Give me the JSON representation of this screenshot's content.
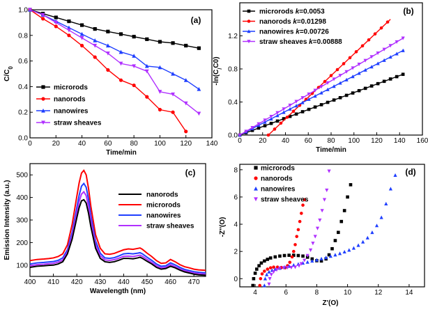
{
  "chart_data": [
    {
      "panel": "(a)",
      "type": "line",
      "xlabel": "Time/min",
      "ylabel": "C/C0",
      "xlim": [
        0,
        140
      ],
      "ylim": [
        0,
        1
      ],
      "xticks": [
        "0",
        "20",
        "40",
        "60",
        "80",
        "100",
        "120",
        "140"
      ],
      "yticks": [
        "0.0",
        "0.2",
        "0.4",
        "0.6",
        "0.8",
        "1.0"
      ],
      "legend": "bottom-left",
      "series": [
        {
          "name": "microrods",
          "color": "#000000",
          "marker": "square",
          "x": [
            0,
            10,
            20,
            30,
            40,
            50,
            60,
            70,
            80,
            90,
            100,
            110,
            120,
            130
          ],
          "y": [
            1.0,
            0.97,
            0.94,
            0.91,
            0.88,
            0.85,
            0.83,
            0.81,
            0.79,
            0.77,
            0.75,
            0.74,
            0.72,
            0.7
          ]
        },
        {
          "name": "nanorods",
          "color": "#ff0000",
          "marker": "circle",
          "x": [
            0,
            10,
            20,
            30,
            40,
            50,
            60,
            70,
            80,
            90,
            100,
            110,
            120
          ],
          "y": [
            1.0,
            0.93,
            0.87,
            0.8,
            0.72,
            0.63,
            0.53,
            0.45,
            0.41,
            0.32,
            0.22,
            0.2,
            0.05
          ]
        },
        {
          "name": "nanowires",
          "color": "#1f3fff",
          "marker": "triangle-up",
          "x": [
            0,
            10,
            20,
            30,
            40,
            50,
            60,
            70,
            80,
            90,
            100,
            110,
            120,
            130
          ],
          "y": [
            1.0,
            0.96,
            0.91,
            0.86,
            0.81,
            0.76,
            0.72,
            0.67,
            0.64,
            0.56,
            0.55,
            0.5,
            0.45,
            0.38
          ]
        },
        {
          "name": "straw sheaves",
          "color": "#b030ff",
          "marker": "triangle-down",
          "x": [
            0,
            10,
            20,
            30,
            40,
            50,
            60,
            70,
            80,
            90,
            100,
            110,
            120,
            130
          ],
          "y": [
            1.0,
            0.96,
            0.9,
            0.84,
            0.78,
            0.72,
            0.66,
            0.58,
            0.56,
            0.52,
            0.36,
            0.34,
            0.27,
            0.19
          ]
        }
      ]
    },
    {
      "panel": "(b)",
      "type": "line",
      "xlabel": "Time/min",
      "ylabel": "-ln(C/C0)",
      "xlim": [
        0,
        160
      ],
      "ylim": [
        0,
        1.6
      ],
      "xticks": [
        "0",
        "20",
        "40",
        "60",
        "80",
        "100",
        "120",
        "140",
        "160"
      ],
      "yticks": [
        "0.0",
        "0.4",
        "0.8",
        "1.2"
      ],
      "legend": "top-left",
      "series": [
        {
          "name": "microrods",
          "k_label": "k=0.0053",
          "color": "#000000",
          "marker": "square",
          "x_start": 0,
          "x_end": 144,
          "y_start": 0.0,
          "y_end": 0.74
        },
        {
          "name": "nanorods",
          "k_label": "k=0.01298",
          "color": "#ff0000",
          "marker": "circle",
          "x_start": 25,
          "x_end": 132,
          "y_start": 0.0,
          "y_end": 1.4
        },
        {
          "name": "nanowires",
          "k_label": "k=0.00726",
          "color": "#1f3fff",
          "marker": "triangle-up",
          "x_start": 0,
          "x_end": 144,
          "y_start": 0.0,
          "y_end": 1.03
        },
        {
          "name": "straw sheaves",
          "k_label": "k=0.00888",
          "color": "#b030ff",
          "marker": "triangle-down",
          "x_start": 0,
          "x_end": 144,
          "y_start": 0.0,
          "y_end": 1.18
        }
      ]
    },
    {
      "panel": "(c)",
      "type": "line",
      "xlabel": "Wavelength (nm)",
      "ylabel": "Emission Intensity (a.u.)",
      "xlim": [
        400,
        475
      ],
      "ylim": [
        50,
        550
      ],
      "xticks": [
        "400",
        "410",
        "420",
        "430",
        "440",
        "450",
        "460",
        "470"
      ],
      "yticks": [
        "100",
        "200",
        "300",
        "400",
        "500"
      ],
      "legend": "right",
      "x": [
        400,
        403,
        406,
        408,
        410,
        412,
        414,
        416,
        418,
        420,
        421,
        422,
        423,
        424,
        425,
        426,
        428,
        430,
        432,
        434,
        436,
        438,
        440,
        442,
        444,
        446,
        447,
        448,
        450,
        452,
        454,
        456,
        458,
        460,
        462,
        464,
        466,
        468,
        470,
        472,
        475
      ],
      "series": [
        {
          "name": "nanorods",
          "color": "#000000",
          "values": [
            90,
            95,
            97,
            99,
            100,
            105,
            115,
            150,
            215,
            310,
            355,
            385,
            390,
            375,
            330,
            270,
            175,
            130,
            115,
            112,
            115,
            122,
            130,
            130,
            128,
            132,
            135,
            130,
            117,
            105,
            90,
            82,
            85,
            95,
            88,
            78,
            70,
            65,
            60,
            57,
            55
          ]
        },
        {
          "name": "microrods",
          "color": "#ff0000",
          "values": [
            120,
            125,
            127,
            129,
            132,
            138,
            150,
            190,
            280,
            405,
            465,
            508,
            520,
            500,
            440,
            360,
            235,
            175,
            150,
            148,
            152,
            160,
            168,
            172,
            170,
            174,
            176,
            170,
            153,
            138,
            120,
            108,
            110,
            125,
            115,
            102,
            93,
            88,
            82,
            79,
            77
          ]
        },
        {
          "name": "nanowires",
          "color": "#1f3fff",
          "values": [
            105,
            110,
            112,
            114,
            116,
            121,
            132,
            168,
            245,
            355,
            410,
            450,
            462,
            445,
            392,
            320,
            207,
            153,
            132,
            130,
            133,
            141,
            150,
            152,
            150,
            153,
            155,
            150,
            135,
            121,
            105,
            95,
            97,
            110,
            101,
            90,
            81,
            76,
            71,
            68,
            66
          ]
        },
        {
          "name": "straw sheaves",
          "color": "#b030ff",
          "values": [
            97,
            102,
            104,
            106,
            108,
            113,
            123,
            158,
            230,
            333,
            382,
            415,
            425,
            408,
            360,
            295,
            190,
            142,
            123,
            121,
            124,
            131,
            139,
            140,
            138,
            142,
            144,
            139,
            125,
            112,
            97,
            88,
            90,
            102,
            93,
            83,
            75,
            70,
            65,
            62,
            60
          ]
        }
      ]
    },
    {
      "panel": "(d)",
      "type": "scatter",
      "xlabel": "Z'(O)",
      "ylabel": "-Z''(O)",
      "xlim": [
        3,
        15
      ],
      "ylim": [
        -0.6,
        8.4
      ],
      "xticks": [
        "4",
        "6",
        "8",
        "10",
        "12",
        "14"
      ],
      "yticks": [
        "0",
        "2",
        "4",
        "6",
        "8"
      ],
      "legend": "top-left",
      "series": [
        {
          "name": "microrods",
          "color": "#000000",
          "marker": "square",
          "x": [
            3.85,
            3.9,
            4.0,
            4.1,
            4.25,
            4.4,
            4.6,
            4.8,
            5.0,
            5.3,
            5.6,
            5.9,
            6.2,
            6.5,
            6.8,
            7.1,
            7.4,
            7.7,
            8.0,
            8.3,
            8.6,
            8.8,
            9.0,
            9.2,
            9.4,
            9.6,
            9.8,
            10.0,
            10.2
          ],
          "y": [
            -0.5,
            0.0,
            0.4,
            0.7,
            0.95,
            1.15,
            1.3,
            1.42,
            1.52,
            1.6,
            1.66,
            1.7,
            1.72,
            1.72,
            1.7,
            1.66,
            1.58,
            1.45,
            1.32,
            1.3,
            1.45,
            1.75,
            2.2,
            2.8,
            3.4,
            4.2,
            5.0,
            6.0,
            6.9
          ]
        },
        {
          "name": "nanorods",
          "color": "#ff0000",
          "marker": "circle",
          "x": [
            4.3,
            4.35,
            4.45,
            4.6,
            4.8,
            5.0,
            5.2,
            5.45,
            5.7,
            5.95,
            6.1,
            6.25,
            6.4,
            6.5,
            6.6,
            6.7,
            6.8,
            6.9,
            7.0,
            7.1,
            7.2
          ],
          "y": [
            -0.5,
            0.0,
            0.35,
            0.55,
            0.7,
            0.8,
            0.85,
            0.85,
            0.82,
            0.8,
            0.95,
            1.2,
            1.6,
            2.0,
            2.5,
            3.1,
            3.6,
            4.2,
            4.8,
            5.4,
            5.8
          ]
        },
        {
          "name": "nanowires",
          "color": "#1f3fff",
          "marker": "triangle-up",
          "x": [
            4.6,
            4.65,
            4.75,
            4.9,
            5.1,
            5.3,
            5.6,
            5.9,
            6.2,
            6.5,
            6.8,
            7.1,
            7.4,
            7.7,
            8.0,
            8.3,
            8.6,
            8.9,
            9.2,
            9.5,
            9.8,
            10.1,
            10.4,
            10.7,
            11.0,
            11.3,
            11.6,
            11.9,
            12.2,
            12.5,
            12.8,
            13.1
          ],
          "y": [
            -0.5,
            0.0,
            0.3,
            0.5,
            0.62,
            0.7,
            0.78,
            0.85,
            0.92,
            1.0,
            1.07,
            1.15,
            1.22,
            1.3,
            1.38,
            1.46,
            1.55,
            1.65,
            1.75,
            1.85,
            1.97,
            2.1,
            2.25,
            2.45,
            2.7,
            3.0,
            3.4,
            3.9,
            4.5,
            5.5,
            6.6,
            7.6
          ]
        },
        {
          "name": "straw sheaves",
          "color": "#b030ff",
          "marker": "triangle-down",
          "x": [
            4.9,
            4.95,
            5.05,
            5.2,
            5.4,
            5.6,
            5.85,
            6.1,
            6.35,
            6.6,
            6.85,
            7.0,
            7.2,
            7.4,
            7.6,
            7.75,
            7.9,
            8.05,
            8.2,
            8.35,
            8.5,
            8.65,
            8.8
          ],
          "y": [
            -0.4,
            0.0,
            0.3,
            0.5,
            0.65,
            0.75,
            0.8,
            0.82,
            0.82,
            0.85,
            0.95,
            1.1,
            1.35,
            1.7,
            2.1,
            2.6,
            3.1,
            3.7,
            4.3,
            5.0,
            5.8,
            6.5,
            7.9
          ]
        }
      ]
    }
  ]
}
